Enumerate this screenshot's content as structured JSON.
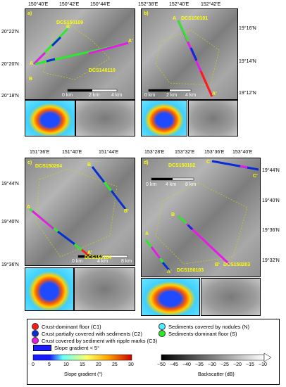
{
  "panels": [
    {
      "id": "a",
      "letter": "a)",
      "survey_top": "DCS150109",
      "survey_bottom": "DCS140110",
      "lon_ticks": [
        "150°40'E",
        "150°42'E",
        "150°44'E"
      ],
      "lat_ticks": [
        "20°22'N",
        "20°20'N",
        "20°18'N"
      ],
      "endpoints": [
        "A",
        "A'",
        "B",
        "B'"
      ],
      "scale": {
        "zero": "0 km",
        "mid": "2 km",
        "end": "4 km"
      }
    },
    {
      "id": "b",
      "letter": "b)",
      "survey_top": "DCS150101",
      "lon_ticks": [
        "152°38'E",
        "152°40'E",
        "152°42'E"
      ],
      "lat_ticks": [
        "19°16'N",
        "19°14'N",
        "19°12'N"
      ],
      "endpoints": [
        "A",
        "A'"
      ],
      "scale": {
        "zero": "0 km",
        "mid": "2 km",
        "end": "4 km"
      }
    },
    {
      "id": "c",
      "letter": "c)",
      "survey_top": "DCS150204",
      "survey_bottom": "DCS150104",
      "lon_ticks": [
        "151°36'E",
        "151°40'E",
        "151°44'E"
      ],
      "lat_ticks": [
        "19°44'N",
        "19°40'N",
        "19°36'N"
      ],
      "endpoints": [
        "A",
        "A'",
        "B",
        "B'"
      ],
      "scale": {
        "zero": "0 km",
        "mid": "4 km",
        "end": "8 km"
      }
    },
    {
      "id": "d",
      "letter": "d)",
      "survey_top": "DCS150102",
      "survey_bottom": "DCS150103",
      "survey_right": "DCS150203",
      "lon_ticks": [
        "153°28'E",
        "153°32'E",
        "153°36'E",
        "153°40'E"
      ],
      "lat_ticks": [
        "19°44'N",
        "19°40'N",
        "19°36'N",
        "19°32'N"
      ],
      "endpoints": [
        "A",
        "A'",
        "B",
        "B'",
        "C",
        "C'"
      ],
      "scale": {
        "zero": "0 km",
        "mid": "4 km",
        "end": "8 km"
      }
    }
  ],
  "legend": {
    "items": [
      {
        "label": "Crust-dominant floor (C1)",
        "color": "#ff1a1a"
      },
      {
        "label": "Crust partially covered with sediments (C2)",
        "color": "#0a2bd6"
      },
      {
        "label": "Crust covered by sediment with ripple marks (C3)",
        "color": "#e81ae8"
      },
      {
        "label": "Sediments covered by nodules (N)",
        "color": "#4fe8ff"
      },
      {
        "label": "Sediments-dominant floor (S)",
        "color": "#2ee82e"
      }
    ],
    "slope_threshold": "Slope gradient < 5°",
    "slope_ticks": [
      "0",
      "5",
      "10",
      "15",
      "20",
      "25",
      "30"
    ],
    "slope_title": "Slope gradient (°)",
    "back_ticks": [
      "−50",
      "−45",
      "−40",
      "−35",
      "−30",
      "−25",
      "−20",
      "−15",
      "−10"
    ],
    "back_title": "Backscatter (dB)",
    "colors": {
      "slope_low": "#1a1aff",
      "slope_mid": "#66ffff",
      "slope_high": "#ffcc00",
      "slope_max": "#cc0000"
    }
  }
}
